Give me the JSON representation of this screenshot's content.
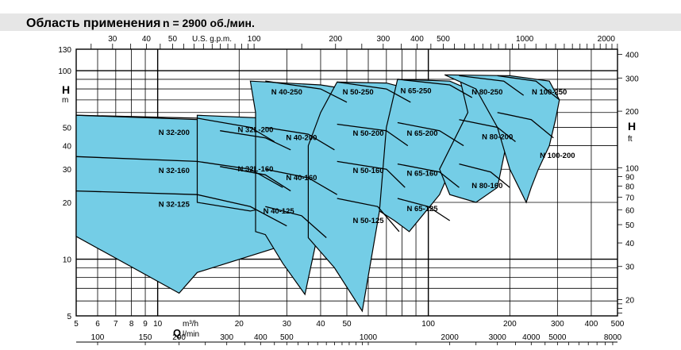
{
  "title": "Область применения",
  "subtitle": "n = 2900 об./мин.",
  "colors": {
    "region_fill": "#74cde6",
    "title_bar": "#e6e6e6",
    "line": "#000000"
  },
  "chart_data": {
    "type": "area",
    "scale": "log-log",
    "grid": true,
    "x_axis_bottom": {
      "label_letter": "Q",
      "unit_primary": "m³/h",
      "unit_secondary": "l/min",
      "range": [
        5,
        500
      ],
      "ticks_m3h": [
        "5",
        "6",
        "7",
        "8",
        "9",
        "10",
        "20",
        "30",
        "40",
        "50",
        "100",
        "200",
        "300",
        "400",
        "500"
      ],
      "ticks_lmin": [
        "100",
        "150",
        "200",
        "300",
        "400",
        "500",
        "1000",
        "2000",
        "3000",
        "4000",
        "5000",
        "8000"
      ]
    },
    "x_axis_top": {
      "unit": "U.S. g.p.m.",
      "ticks": [
        "30",
        "40",
        "50",
        "100",
        "200",
        "300",
        "400",
        "500",
        "1000",
        "2000"
      ]
    },
    "y_axis_left": {
      "label_letter": "H",
      "unit": "m",
      "range": [
        5,
        130
      ],
      "ticks": [
        "5",
        "10",
        "20",
        "30",
        "40",
        "50",
        "100",
        "130"
      ]
    },
    "y_axis_right": {
      "label_letter": "H",
      "unit": "ft",
      "ticks": [
        "20",
        "30",
        "40",
        "50",
        "60",
        "70",
        "80",
        "90",
        "100",
        "200",
        "300",
        "400"
      ]
    },
    "pump_models": [
      {
        "name": "N 32-200",
        "label_at": [
          11.5,
          47
        ]
      },
      {
        "name": "N 32-160",
        "label_at": [
          11.5,
          29.5
        ]
      },
      {
        "name": "N 32-125",
        "label_at": [
          11.5,
          19.5
        ]
      },
      {
        "name": "N 32L-200",
        "label_at": [
          23,
          48.5
        ]
      },
      {
        "name": "N 32L-160",
        "label_at": [
          23,
          30
        ]
      },
      {
        "name": "N 40-250",
        "label_at": [
          30,
          77
        ]
      },
      {
        "name": "N 40-200",
        "label_at": [
          34,
          44
        ]
      },
      {
        "name": "N 40-160",
        "label_at": [
          34,
          27
        ]
      },
      {
        "name": "N 40-125",
        "label_at": [
          28,
          18
        ]
      },
      {
        "name": "N 50-250",
        "label_at": [
          55,
          77
        ]
      },
      {
        "name": "N 50-200",
        "label_at": [
          60,
          46.5
        ]
      },
      {
        "name": "N 50-160",
        "label_at": [
          60,
          29.5
        ]
      },
      {
        "name": "N 50-125",
        "label_at": [
          60,
          16
        ]
      },
      {
        "name": "N 65-250",
        "label_at": [
          90,
          78
        ]
      },
      {
        "name": "N 65-200",
        "label_at": [
          95,
          46.5
        ]
      },
      {
        "name": "N 65-160",
        "label_at": [
          95,
          28.5
        ]
      },
      {
        "name": "N 65-125",
        "label_at": [
          95,
          18.5
        ]
      },
      {
        "name": "N 80-250",
        "label_at": [
          165,
          77
        ]
      },
      {
        "name": "N 80-200",
        "label_at": [
          180,
          44.5
        ]
      },
      {
        "name": "N 80-160",
        "label_at": [
          165,
          24.5
        ]
      },
      {
        "name": "N 100-250",
        "label_at": [
          280,
          77
        ]
      },
      {
        "name": "N 100-200",
        "label_at": [
          300,
          35.5
        ]
      }
    ]
  }
}
